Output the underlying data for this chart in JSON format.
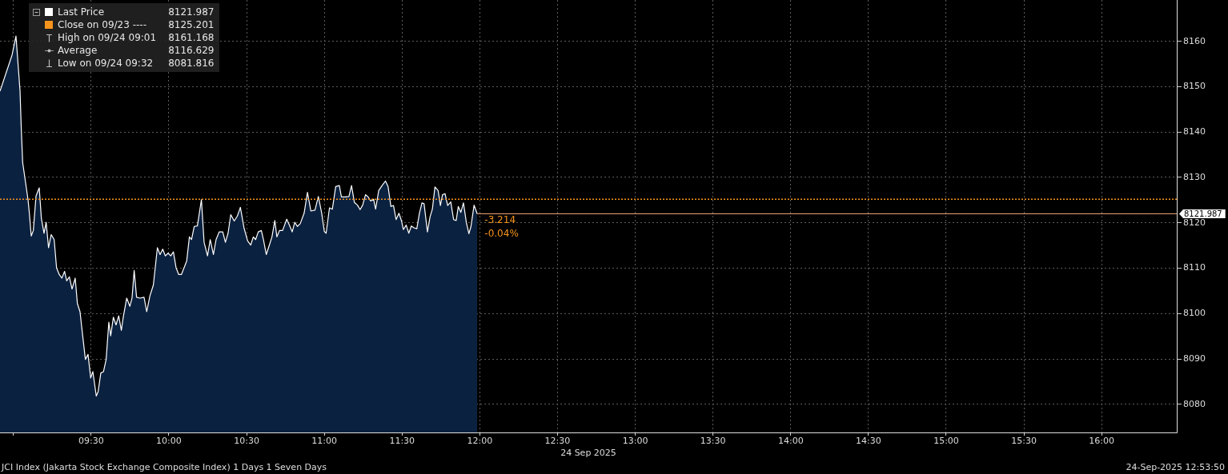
{
  "chart_data": {
    "type": "area",
    "title": "JCI Index (Jakarta Stock Exchange Composite Index) 1 Days 1 Seven Days",
    "subtitle": "24-Sep-2025 12:53:50",
    "xlabel": "24 Sep 2025",
    "annotations": [
      "High on 09/24 09:01 8161.168",
      "Average 8116.629",
      "Low on 09/24 09:32 8081.816",
      {
        "text": "-3.214",
        "x": 12.0,
        "y": 8120.5
      },
      {
        "text": "-0.04%",
        "x": 12.0,
        "y": 8117.5
      }
    ],
    "series": [
      {
        "name": "Last Price",
        "color": "#ffffff",
        "x": [
          8.914,
          8.9917,
          9.0167,
          9.0427,
          9.0513,
          9.0598,
          9.077,
          9.0942,
          9.1028,
          9.1148,
          9.1285,
          9.1457,
          9.1663,
          9.18,
          9.1972,
          9.2108,
          9.2263,
          9.2435,
          9.2623,
          9.2778,
          9.295,
          9.312,
          9.3293,
          9.343,
          9.3602,
          9.3773,
          9.3978,
          9.4117,
          9.4287,
          9.4458,
          9.4632,
          9.4802,
          9.4973,
          9.5112,
          9.5333,
          9.5453,
          9.5625,
          9.5797,
          9.5968,
          9.614,
          9.626,
          9.6432,
          9.6603,
          9.6775,
          9.6947,
          9.7067,
          9.729,
          9.7495,
          9.7633,
          9.777,
          9.7925,
          9.8148,
          9.8405,
          9.8577,
          9.8783,
          9.9005,
          9.9263,
          9.9435,
          9.9607,
          9.9778,
          9.995,
          10.0122,
          10.0293,
          10.0465,
          10.0637,
          10.0808,
          10.0978,
          10.115,
          10.1322,
          10.146,
          10.1632,
          10.1837,
          10.2095,
          10.2267,
          10.2488,
          10.266,
          10.2867,
          10.3038,
          10.3243,
          10.3467,
          10.3638,
          10.381,
          10.3982,
          10.4205,
          10.441,
          10.46,
          10.4833,
          10.5067,
          10.5267,
          10.5433,
          10.5583,
          10.575,
          10.595,
          10.6083,
          10.6267,
          10.6467,
          10.6633,
          10.6817,
          10.695,
          10.7117,
          10.7317,
          10.7583,
          10.775,
          10.7933,
          10.81,
          10.8267,
          10.845,
          10.87,
          10.8917,
          10.9133,
          10.94,
          10.9617,
          10.9833,
          11.0,
          11.0117,
          11.0333,
          11.0517,
          11.0733,
          11.0967,
          11.11,
          11.1367,
          11.1583,
          11.175,
          11.1933,
          11.2133,
          11.23,
          11.2467,
          11.265,
          11.2817,
          11.2983,
          11.3167,
          11.33,
          11.35,
          11.3717,
          11.3933,
          11.41,
          11.4283,
          11.445,
          11.4617,
          11.48,
          11.4967,
          11.5083,
          11.5267,
          11.5433,
          11.56,
          11.5767,
          11.595,
          11.6117,
          11.6283,
          11.6417,
          11.6633,
          11.68,
          11.695,
          11.7117,
          11.7317,
          11.7467,
          11.76,
          11.7767,
          11.7933,
          11.8133,
          11.8317,
          11.8483,
          11.8617,
          11.8783,
          11.895,
          11.9133,
          11.93,
          11.9433,
          11.9633,
          11.9833
        ],
        "values": [
          8149.0,
          8157.0,
          8161.168,
          8149.1,
          8140.3,
          8133.3,
          8129.2,
          8125.1,
          8122.1,
          8117.1,
          8118.3,
          8125.9,
          8127.7,
          8121.0,
          8117.7,
          8120.1,
          8114.5,
          8117.4,
          8116.3,
          8110.1,
          8108.6,
          8107.8,
          8109.3,
          8107.2,
          8108.1,
          8105.4,
          8107.8,
          8102.2,
          8100.4,
          8095.1,
          8089.9,
          8091.0,
          8085.8,
          8087.2,
          8081.816,
          8082.8,
          8086.9,
          8087.2,
          8089.9,
          8098.1,
          8095.1,
          8099.2,
          8097.5,
          8099.5,
          8096.3,
          8099.2,
          8103.4,
          8101.6,
          8103.4,
          8109.5,
          8103.6,
          8103.4,
          8103.6,
          8100.4,
          8103.9,
          8106.3,
          8114.5,
          8113.0,
          8114.2,
          8112.7,
          8113.3,
          8112.7,
          8113.6,
          8110.1,
          8108.6,
          8108.6,
          8110.1,
          8111.6,
          8116.9,
          8116.3,
          8119.2,
          8119.3,
          8125.1,
          8115.7,
          8112.7,
          8116.3,
          8113.0,
          8116.3,
          8118.0,
          8118.0,
          8115.7,
          8117.7,
          8121.8,
          8120.4,
          8121.5,
          8123.4,
          8118.9,
          8116.0,
          8115.1,
          8116.9,
          8116.3,
          8118.0,
          8118.3,
          8116.3,
          8113.0,
          8115.1,
          8116.9,
          8120.5,
          8116.9,
          8118.3,
          8118.3,
          8120.8,
          8119.5,
          8118.0,
          8120.1,
          8119.2,
          8119.8,
          8122.1,
          8126.7,
          8122.6,
          8122.8,
          8125.8,
          8122.1,
          8118.1,
          8117.7,
          8123.3,
          8123.0,
          8128.0,
          8128.2,
          8125.7,
          8125.7,
          8125.8,
          8128.2,
          8124.5,
          8123.9,
          8122.9,
          8123.9,
          8126.2,
          8125.7,
          8124.8,
          8125.2,
          8123.0,
          8127.1,
          8128.2,
          8129.2,
          8128.0,
          8123.6,
          8123.8,
          8120.7,
          8122.1,
          8120.4,
          8118.5,
          8119.5,
          8117.7,
          8119.3,
          8118.9,
          8118.7,
          8122.1,
          8124.4,
          8124.2,
          8118.0,
          8121.3,
          8123.0,
          8127.9,
          8127.1,
          8123.8,
          8126.2,
          8126.4,
          8123.8,
          8124.6,
          8120.7,
          8120.5,
          8123.6,
          8122.3,
          8124.4,
          8120.1,
          8117.6,
          8119.2,
          8123.9,
          8121.987
        ]
      }
    ],
    "xlim": [
      8.914,
      16.483
    ],
    "xticks": [
      {
        "value": 9,
        "label": null
      },
      {
        "value": 9.5,
        "label": "09:30"
      },
      {
        "value": 10,
        "label": "10:00"
      },
      {
        "value": 10.5,
        "label": "10:30"
      },
      {
        "value": 11,
        "label": "11:00"
      },
      {
        "value": 11.5,
        "label": "11:30"
      },
      {
        "value": 12,
        "label": "12:00"
      },
      {
        "value": 12.5,
        "label": "12:30"
      },
      {
        "value": 13,
        "label": "13:00"
      },
      {
        "value": 13.5,
        "label": "13:30"
      },
      {
        "value": 14,
        "label": "14:00"
      },
      {
        "value": 14.5,
        "label": "14:30"
      },
      {
        "value": 15,
        "label": "15:00"
      },
      {
        "value": 15.5,
        "label": "15:30"
      },
      {
        "value": 16,
        "label": "16:00"
      }
    ],
    "ylim": [
      8073.8,
      8169.1
    ],
    "yticks": [
      8080,
      8090,
      8100,
      8110,
      8120,
      8130,
      8140,
      8150,
      8160
    ],
    "ref_lines": [
      {
        "axis": "y",
        "value": 8125.201,
        "label": "Close on 09/23 ---- 8125.201",
        "color": "#f7941d",
        "line_style": "dotted"
      },
      {
        "axis": "y",
        "value": 8121.987,
        "label": "8121.987",
        "color": "#f2a378"
      }
    ],
    "grid": true,
    "legend": "top left",
    "marker": "none",
    "line_style": "solid"
  }
}
